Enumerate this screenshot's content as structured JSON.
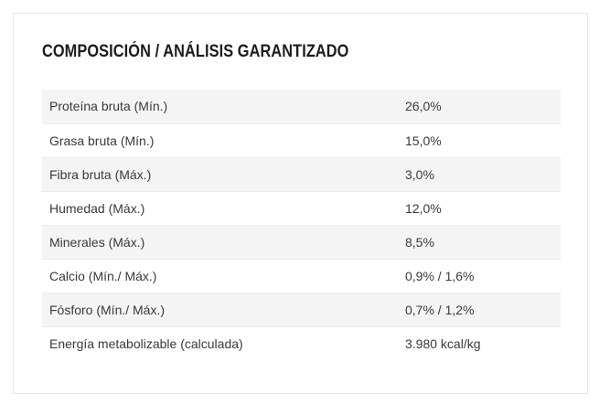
{
  "section": {
    "title": "COMPOSICIÓN / ANÁLISIS GARANTIZADO"
  },
  "table": {
    "rows": [
      {
        "label": "Proteína bruta (Mín.)",
        "value": "26,0%"
      },
      {
        "label": "Grasa bruta (Mín.)",
        "value": "15,0%"
      },
      {
        "label": "Fibra bruta (Máx.)",
        "value": "3,0%"
      },
      {
        "label": "Humedad (Máx.)",
        "value": "12,0%"
      },
      {
        "label": "Minerales (Máx.)",
        "value": "8,5%"
      },
      {
        "label": "Calcio (Mín./ Máx.)",
        "value": "0,9% / 1,6%"
      },
      {
        "label": "Fósforo (Mín./ Máx.)",
        "value": "0,7% / 1,2%"
      },
      {
        "label": "Energía metabolizable (calculada)",
        "value": "3.980 kcal/kg"
      }
    ]
  },
  "colors": {
    "title_text": "#1c1c1c",
    "body_text": "#3a3a3a",
    "row_stripe": "#f4f4f4",
    "card_border": "#e6e6e6"
  }
}
